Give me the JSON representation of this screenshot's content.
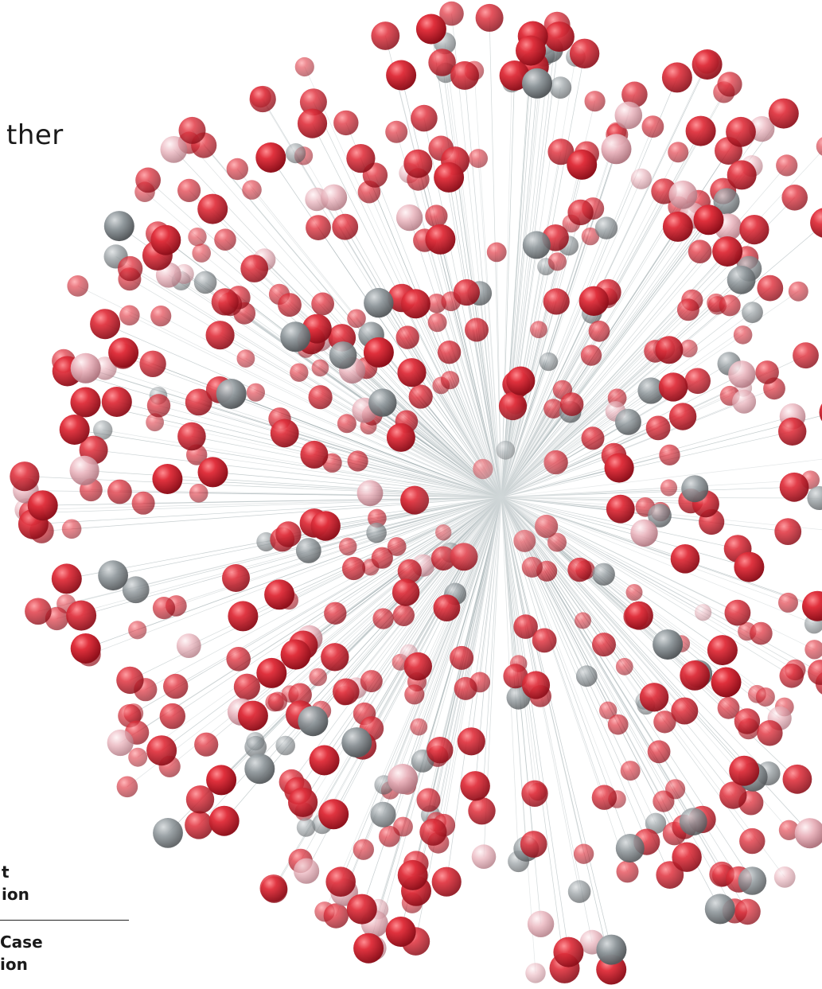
{
  "heading": "ther",
  "side_labels": [
    "t",
    "ion",
    "Case",
    "ion"
  ],
  "colors": {
    "background": "#ffffff",
    "sphere_red": "#c8202e",
    "sphere_pink": "#e8aab4",
    "sphere_grey": "#8a9296",
    "line": "#9aa8ab",
    "text": "#1a1a1a"
  }
}
